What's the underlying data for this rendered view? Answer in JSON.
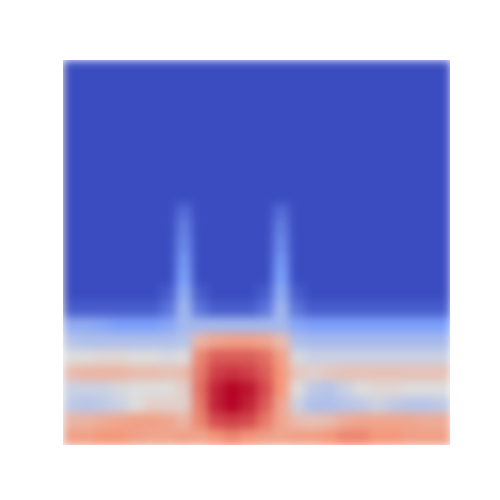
{
  "chart_data": {
    "type": "heatmap",
    "tick_labels": false,
    "zlim": [
      0,
      1
    ],
    "cells": [
      [
        0,
        0,
        0,
        0,
        0,
        0,
        0,
        0,
        0,
        0,
        0,
        0,
        0,
        0,
        0,
        0,
        0,
        0,
        0,
        0,
        0,
        0,
        0,
        0
      ],
      [
        0,
        0,
        0,
        0,
        0,
        0,
        0,
        0,
        0,
        0,
        0,
        0,
        0,
        0,
        0,
        0,
        0,
        0,
        0,
        0,
        0,
        0,
        0,
        0
      ],
      [
        0,
        0,
        0,
        0,
        0,
        0,
        0,
        0,
        0,
        0,
        0,
        0,
        0,
        0,
        0,
        0,
        0,
        0,
        0,
        0,
        0,
        0,
        0,
        0
      ],
      [
        0,
        0,
        0,
        0,
        0,
        0,
        0,
        0,
        0,
        0,
        0,
        0,
        0,
        0,
        0,
        0,
        0,
        0,
        0,
        0,
        0,
        0,
        0,
        0
      ],
      [
        0,
        0,
        0,
        0,
        0,
        0,
        0,
        0,
        0,
        0,
        0,
        0,
        0,
        0,
        0,
        0,
        0,
        0,
        0,
        0,
        0,
        0,
        0,
        0
      ],
      [
        0,
        0,
        0,
        0,
        0,
        0,
        0,
        0,
        0,
        0,
        0,
        0,
        0,
        0,
        0,
        0,
        0,
        0,
        0,
        0,
        0,
        0,
        0,
        0
      ],
      [
        0,
        0,
        0,
        0,
        0,
        0,
        0,
        0,
        0,
        0,
        0,
        0,
        0,
        0,
        0,
        0,
        0,
        0,
        0,
        0,
        0,
        0,
        0,
        0
      ],
      [
        0,
        0,
        0,
        0,
        0,
        0,
        0,
        0,
        0,
        0,
        0,
        0,
        0,
        0,
        0,
        0,
        0,
        0,
        0,
        0,
        0,
        0,
        0,
        0
      ],
      [
        0,
        0,
        0,
        0,
        0,
        0,
        0,
        0,
        0,
        0,
        0,
        0,
        0,
        0,
        0,
        0,
        0,
        0,
        0,
        0,
        0,
        0,
        0,
        0
      ],
      [
        0,
        0,
        0,
        0,
        0,
        0,
        0,
        0.1,
        0,
        0,
        0,
        0,
        0,
        0.1,
        0,
        0,
        0,
        0,
        0,
        0,
        0,
        0,
        0,
        0
      ],
      [
        0,
        0,
        0,
        0,
        0,
        0,
        0,
        0.15,
        0,
        0,
        0,
        0,
        0,
        0.15,
        0,
        0,
        0,
        0,
        0,
        0,
        0,
        0,
        0,
        0
      ],
      [
        0,
        0,
        0,
        0,
        0,
        0,
        0,
        0.18,
        0,
        0,
        0,
        0,
        0,
        0.18,
        0,
        0,
        0,
        0,
        0,
        0,
        0,
        0,
        0,
        0
      ],
      [
        0,
        0,
        0,
        0,
        0,
        0,
        0,
        0.22,
        0,
        0,
        0,
        0,
        0,
        0.22,
        0,
        0,
        0,
        0,
        0,
        0,
        0,
        0,
        0,
        0
      ],
      [
        0,
        0,
        0,
        0,
        0,
        0,
        0,
        0.25,
        0,
        0,
        0,
        0,
        0,
        0.25,
        0,
        0,
        0,
        0,
        0,
        0,
        0,
        0,
        0,
        0
      ],
      [
        0,
        0,
        0,
        0,
        0,
        0,
        0.05,
        0.3,
        0.05,
        0,
        0,
        0,
        0.05,
        0.3,
        0.05,
        0,
        0,
        0,
        0,
        0,
        0,
        0,
        0,
        0
      ],
      [
        0.05,
        0.05,
        0.05,
        0.05,
        0.05,
        0.05,
        0.12,
        0.35,
        0.12,
        0.05,
        0.05,
        0.05,
        0.12,
        0.35,
        0.12,
        0.05,
        0.05,
        0.05,
        0.05,
        0.05,
        0.05,
        0.05,
        0.05,
        0.05
      ],
      [
        0.3,
        0.3,
        0.28,
        0.25,
        0.25,
        0.25,
        0.28,
        0.35,
        0.35,
        0.35,
        0.35,
        0.35,
        0.35,
        0.35,
        0.28,
        0.25,
        0.25,
        0.25,
        0.25,
        0.25,
        0.25,
        0.25,
        0.25,
        0.25
      ],
      [
        0.4,
        0.38,
        0.38,
        0.38,
        0.38,
        0.38,
        0.38,
        0.4,
        0.65,
        0.7,
        0.72,
        0.72,
        0.7,
        0.62,
        0.38,
        0.36,
        0.36,
        0.36,
        0.36,
        0.36,
        0.36,
        0.36,
        0.36,
        0.36
      ],
      [
        0.5,
        0.5,
        0.52,
        0.52,
        0.5,
        0.5,
        0.48,
        0.5,
        0.78,
        0.85,
        0.85,
        0.85,
        0.82,
        0.72,
        0.48,
        0.45,
        0.45,
        0.45,
        0.45,
        0.45,
        0.45,
        0.45,
        0.45,
        0.45
      ],
      [
        0.62,
        0.65,
        0.65,
        0.65,
        0.62,
        0.62,
        0.6,
        0.62,
        0.8,
        0.9,
        0.92,
        0.9,
        0.85,
        0.75,
        0.58,
        0.55,
        0.58,
        0.6,
        0.6,
        0.6,
        0.6,
        0.6,
        0.6,
        0.6
      ],
      [
        0.45,
        0.45,
        0.45,
        0.48,
        0.5,
        0.5,
        0.5,
        0.55,
        0.82,
        0.95,
        1,
        0.97,
        0.88,
        0.75,
        0.5,
        0.42,
        0.4,
        0.45,
        0.5,
        0.52,
        0.52,
        0.5,
        0.5,
        0.5
      ],
      [
        0.42,
        0.4,
        0.42,
        0.45,
        0.5,
        0.55,
        0.55,
        0.55,
        0.8,
        0.95,
        1,
        0.95,
        0.85,
        0.7,
        0.45,
        0.38,
        0.38,
        0.4,
        0.42,
        0.45,
        0.42,
        0.4,
        0.4,
        0.42
      ],
      [
        0.65,
        0.65,
        0.68,
        0.7,
        0.72,
        0.72,
        0.7,
        0.65,
        0.78,
        0.88,
        0.9,
        0.88,
        0.8,
        0.7,
        0.62,
        0.6,
        0.62,
        0.68,
        0.7,
        0.7,
        0.7,
        0.7,
        0.68,
        0.68
      ],
      [
        0.72,
        0.72,
        0.75,
        0.75,
        0.72,
        0.7,
        0.7,
        0.72,
        0.7,
        0.75,
        0.78,
        0.75,
        0.72,
        0.7,
        0.72,
        0.72,
        0.75,
        0.78,
        0.78,
        0.75,
        0.75,
        0.72,
        0.72,
        0.72
      ]
    ]
  }
}
